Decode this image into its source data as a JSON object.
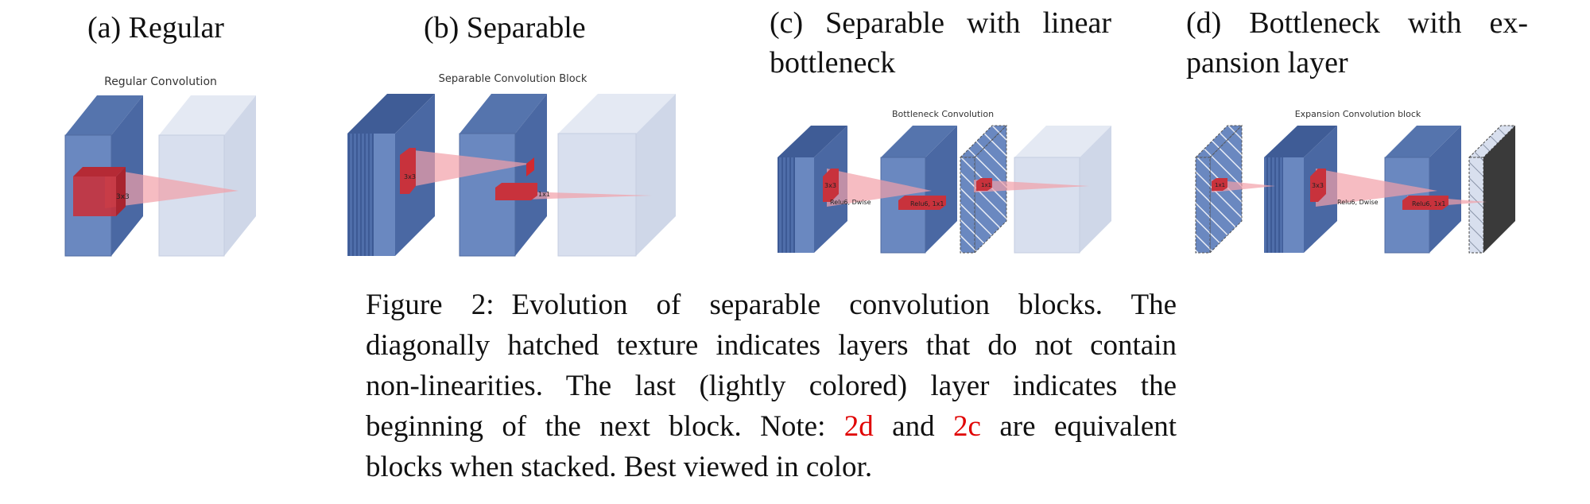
{
  "panels": {
    "a": {
      "title": "(a) Regular",
      "diagram_title": "Regular Convolution",
      "kernel_label": "3x3"
    },
    "b": {
      "title": "(b) Separable",
      "diagram_title": "Separable Convolution Block",
      "kernel_label_1": "3x3",
      "kernel_label_2": "1x1"
    },
    "c": {
      "title_line1": "(c) Separable with linear",
      "title_line2": "bottleneck",
      "diagram_title": "Bottleneck Convolution",
      "kernel_label_1": "3x3",
      "op_label_1": "Relu6, Dwise",
      "op_label_2": "Relu6, 1x1",
      "kernel_label_3": "1x1"
    },
    "d": {
      "title_line1": "(d) Bottleneck with ex-",
      "title_line2": "pansion layer",
      "diagram_title": "Expansion Convolution block",
      "kernel_label_1": "1x1",
      "kernel_label_2": "3x3",
      "op_label_1": "Relu6, Dwise",
      "op_label_2": "Relu6, 1x1"
    }
  },
  "caption": {
    "label": "Figure 2:",
    "line1": "Evolution of separable convolution blocks.  The",
    "line2": "diagonally hatched texture indicates layers that do not contain",
    "line3": "non-linearities.  The last (lightly colored) layer indicates the",
    "line4_a": "beginning of the next block. Note:",
    "ref_1": "2d",
    "line4_b": "and",
    "ref_2": "2c",
    "line4_c": "are equivalent",
    "line5": "blocks when stacked. Best viewed in color."
  },
  "colors": {
    "block_front": "#6a88c0",
    "block_top": "#5574ad",
    "block_side": "#4a68a3",
    "light_block": "#d8dfee",
    "kernel_red": "#c8323c",
    "ray_pink": "#f2a0a8",
    "reference_red": "#e00000"
  }
}
